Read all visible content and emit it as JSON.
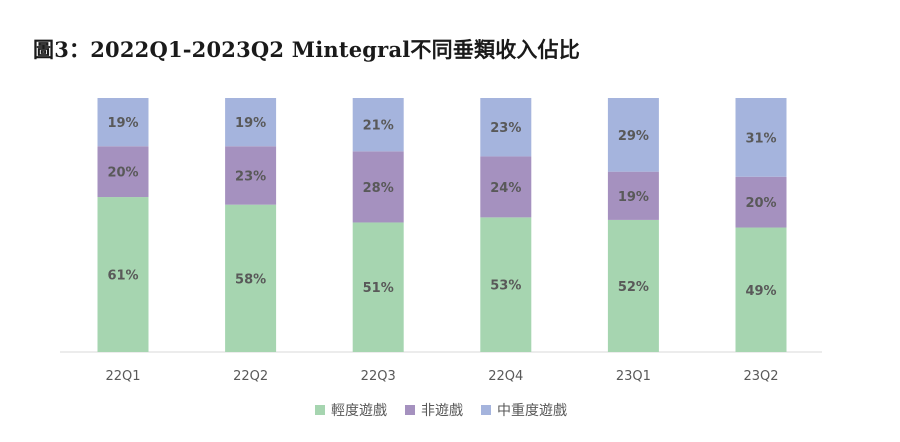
{
  "title": "圖3：2022Q1-2023Q2 Mintegral不同垂類收入佔比",
  "chart_data": {
    "type": "bar",
    "stacked": true,
    "categories": [
      "22Q1",
      "22Q2",
      "22Q3",
      "22Q4",
      "23Q1",
      "23Q2"
    ],
    "series": [
      {
        "name": "輕度遊戲",
        "values": [
          61,
          58,
          51,
          53,
          52,
          49
        ],
        "color": "#a6d5b0"
      },
      {
        "name": "非遊戲",
        "values": [
          20,
          23,
          28,
          24,
          19,
          20
        ],
        "color": "#a591bf"
      },
      {
        "name": "中重度遊戲",
        "values": [
          19,
          19,
          21,
          23,
          29,
          31
        ],
        "color": "#a5b4dd"
      }
    ],
    "value_suffix": "%",
    "ylim": [
      0,
      100
    ],
    "grid": false,
    "legend_position": "bottom"
  }
}
